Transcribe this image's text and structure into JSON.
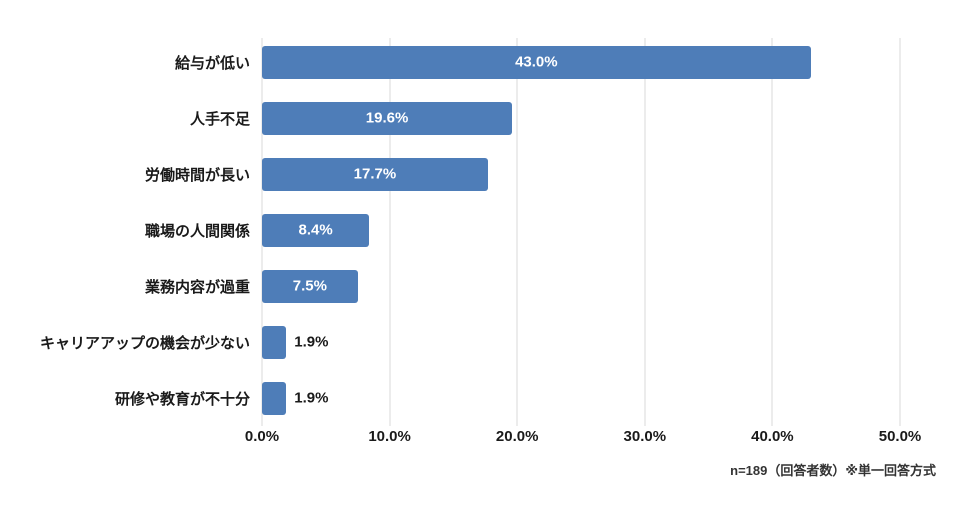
{
  "chart_data": {
    "type": "bar",
    "orientation": "horizontal",
    "categories": [
      "給与が低い",
      "人手不足",
      "労働時間が長い",
      "職場の人間関係",
      "業務内容が過重",
      "キャリアアップの機会が少ない",
      "研修や教育が不十分"
    ],
    "values": [
      43.0,
      19.6,
      17.7,
      8.4,
      7.5,
      1.9,
      1.9
    ],
    "value_labels": [
      "43.0%",
      "19.6%",
      "17.7%",
      "8.4%",
      "7.5%",
      "1.9%",
      "1.9%"
    ],
    "xlim": [
      0,
      50
    ],
    "x_ticks": [
      "0.0%",
      "10.0%",
      "20.0%",
      "30.0%",
      "40.0%",
      "50.0%"
    ],
    "x_tick_values": [
      0,
      10,
      20,
      30,
      40,
      50
    ],
    "bar_color": "#4e7db8",
    "grid": true,
    "legend": "none",
    "note": "n=189（回答者数）※単一回答方式"
  }
}
